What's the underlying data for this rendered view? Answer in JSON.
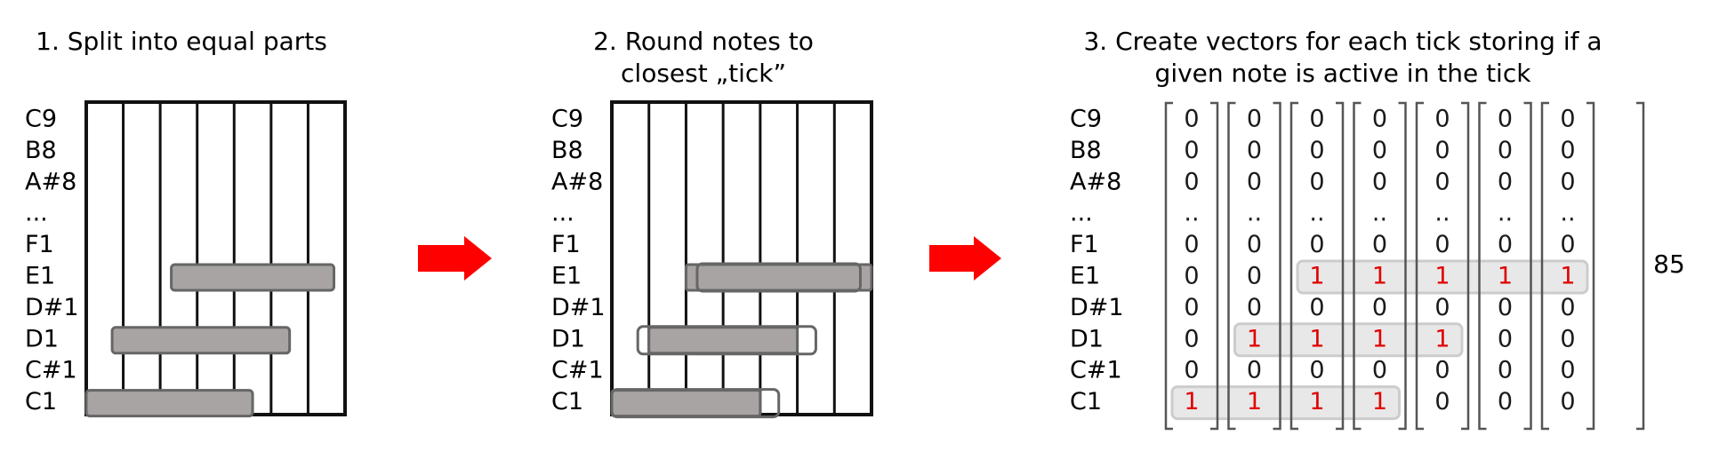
{
  "steps": [
    {
      "title_lines": [
        "1. Split into equal parts"
      ]
    },
    {
      "title_lines": [
        "2. Round notes to",
        "closest „tick”"
      ]
    },
    {
      "title_lines": [
        "3. Create vectors for each tick storing if a",
        "given note is active in the tick"
      ]
    }
  ],
  "note_labels": [
    "C9",
    "B8",
    "A#8",
    "...",
    "F1",
    "E1",
    "D#1",
    "D1",
    "C#1",
    "C1"
  ],
  "vector_ellipsis_glyph": "..",
  "tick_count": 7,
  "notes": [
    {
      "pitch": "E1",
      "start_tick": 2.3,
      "end_tick": 6.7,
      "rounded_start": 2,
      "rounded_end": 7
    },
    {
      "pitch": "D1",
      "start_tick": 0.7,
      "end_tick": 5.5,
      "rounded_start": 1,
      "rounded_end": 5
    },
    {
      "pitch": "C1",
      "start_tick": 0.0,
      "end_tick": 4.5,
      "rounded_start": 0,
      "rounded_end": 4
    }
  ],
  "vector_size_label": "85",
  "colors": {
    "arrow": "#ff0000",
    "note_fill": "#a8a4a4",
    "note_stroke": "#666666",
    "active_value": "#e00000",
    "highlight_fill": "#e8e8e8",
    "highlight_stroke": "#cccccc",
    "bracket": "#555555",
    "grid": "#111111"
  },
  "icons": {
    "arrow": "arrow-right-icon"
  }
}
